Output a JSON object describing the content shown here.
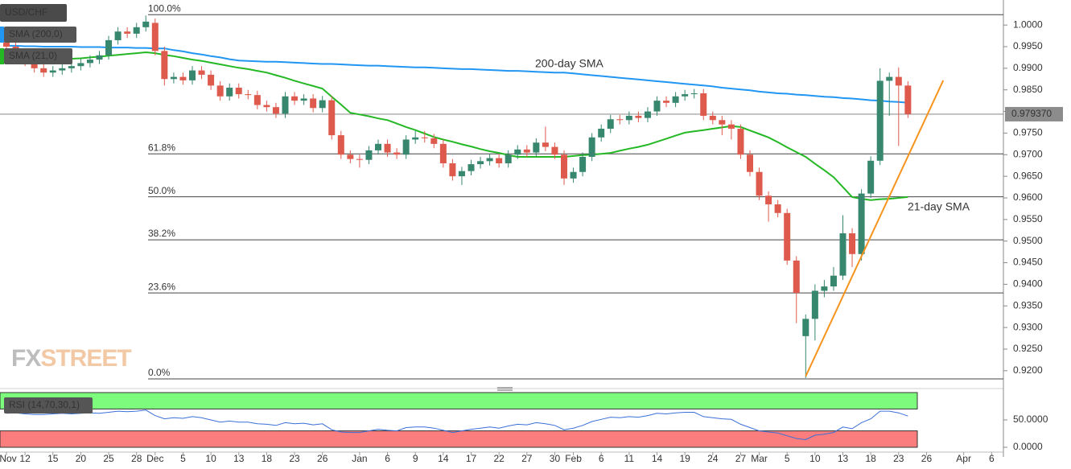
{
  "chart_data": {
    "type": "candlestick",
    "title": "USD/CHF",
    "categories": [
      "Nov",
      null,
      "12",
      null,
      null,
      "15",
      null,
      null,
      "20",
      null,
      null,
      "25",
      null,
      null,
      "28",
      null,
      "Dec",
      null,
      null,
      "5",
      null,
      null,
      "10",
      null,
      null,
      "13",
      null,
      null,
      "18",
      null,
      null,
      "23",
      null,
      null,
      "26",
      null,
      null,
      null,
      "Jan",
      null,
      null,
      "6",
      null,
      null,
      "9",
      null,
      null,
      "14",
      null,
      null,
      "17",
      null,
      null,
      "22",
      null,
      null,
      "27",
      null,
      null,
      "30",
      null,
      "Feb",
      null,
      null,
      "6",
      null,
      null,
      "11",
      null,
      null,
      "14",
      null,
      null,
      "19",
      null,
      null,
      "24",
      null,
      null,
      "27",
      null,
      "Mar",
      null,
      null,
      "5",
      null,
      null,
      "10",
      null,
      null,
      "13",
      null,
      null,
      "18",
      null,
      null,
      "23",
      null,
      null,
      "26",
      null,
      null,
      null,
      "Apr",
      null,
      null,
      "6"
    ],
    "open": [
      0.996,
      0.995,
      0.9935,
      0.9915,
      0.99,
      0.989,
      0.9895,
      0.99,
      0.9905,
      0.9912,
      0.992,
      0.993,
      0.9965,
      0.9985,
      0.998,
      0.9995,
      1.0005,
      0.994,
      0.9875,
      0.988,
      0.9872,
      0.9895,
      0.9885,
      0.986,
      0.9835,
      0.9855,
      0.984,
      0.9838,
      0.9815,
      0.981,
      0.9795,
      0.9835,
      0.9825,
      0.983,
      0.9808,
      0.9826,
      0.9745,
      0.97,
      0.969,
      0.9688,
      0.971,
      0.9725,
      0.9705,
      0.97,
      0.9735,
      0.974,
      0.9738,
      0.9725,
      0.968,
      0.965,
      0.9662,
      0.9678,
      0.9685,
      0.9692,
      0.968,
      0.97,
      0.9712,
      0.9705,
      0.9728,
      0.9718,
      0.97,
      0.9645,
      0.966,
      0.9695,
      0.974,
      0.976,
      0.9782,
      0.978,
      0.979,
      0.9785,
      0.98,
      0.9825,
      0.982,
      0.9835,
      0.984,
      0.9842,
      0.979,
      0.978,
      0.977,
      0.976,
      0.97,
      0.966,
      0.9605,
      0.9585,
      0.9565,
      0.9455,
      0.928,
      0.932,
      0.9385,
      0.9395,
      0.942,
      0.9518,
      0.947,
      0.961,
      0.9686,
      0.9871,
      0.988,
      0.986,
      null,
      null,
      null,
      null,
      null,
      null,
      null,
      null,
      null
    ],
    "high": [
      0.997,
      0.996,
      0.9945,
      0.9925,
      0.991,
      0.9905,
      0.991,
      0.9915,
      0.9922,
      0.993,
      0.994,
      0.9975,
      0.9995,
      0.9995,
      1.0005,
      1.0022,
      1.0015,
      0.995,
      0.989,
      0.989,
      0.9905,
      0.9905,
      0.9895,
      0.987,
      0.9865,
      0.9865,
      0.985,
      0.9848,
      0.9825,
      0.982,
      0.9845,
      0.9845,
      0.984,
      0.984,
      0.9836,
      0.9836,
      0.9755,
      0.971,
      0.97,
      0.972,
      0.9735,
      0.9735,
      0.9715,
      0.9745,
      0.9755,
      0.9755,
      0.9748,
      0.9735,
      0.969,
      0.9672,
      0.9688,
      0.9695,
      0.9702,
      0.9702,
      0.971,
      0.9722,
      0.9722,
      0.9738,
      0.9765,
      0.9728,
      0.971,
      0.967,
      0.9705,
      0.975,
      0.977,
      0.9792,
      0.9792,
      0.98,
      0.98,
      0.981,
      0.9835,
      0.9835,
      0.9845,
      0.985,
      0.9852,
      0.9852,
      0.98,
      0.979,
      0.978,
      0.977,
      0.971,
      0.967,
      0.9615,
      0.9595,
      0.9575,
      0.9465,
      0.933,
      0.94,
      0.941,
      0.944,
      0.956,
      0.953,
      0.962,
      0.9696,
      0.99,
      0.989,
      0.9902,
      0.987,
      null,
      null,
      null,
      null,
      null,
      null,
      null,
      null,
      null
    ],
    "low": [
      0.994,
      0.9925,
      0.9905,
      0.989,
      0.988,
      0.988,
      0.9885,
      0.989,
      0.9895,
      0.9902,
      0.991,
      0.992,
      0.9955,
      0.997,
      0.997,
      0.9985,
      0.993,
      0.986,
      0.9865,
      0.9862,
      0.9862,
      0.9875,
      0.985,
      0.9825,
      0.9825,
      0.983,
      0.9828,
      0.9805,
      0.98,
      0.9785,
      0.9785,
      0.9815,
      0.9815,
      0.9798,
      0.9798,
      0.9735,
      0.969,
      0.968,
      0.967,
      0.9678,
      0.97,
      0.9695,
      0.969,
      0.969,
      0.9725,
      0.9728,
      0.9715,
      0.967,
      0.964,
      0.963,
      0.9652,
      0.9668,
      0.9675,
      0.967,
      0.967,
      0.969,
      0.9695,
      0.9695,
      0.9708,
      0.969,
      0.963,
      0.9635,
      0.965,
      0.9685,
      0.973,
      0.975,
      0.977,
      0.977,
      0.9775,
      0.9775,
      0.979,
      0.981,
      0.981,
      0.9825,
      0.983,
      0.978,
      0.977,
      0.9745,
      0.9735,
      0.969,
      0.965,
      0.9595,
      0.9545,
      0.9555,
      0.9445,
      0.931,
      0.9183,
      0.927,
      0.937,
      0.9385,
      0.941,
      0.944,
      0.9455,
      0.96,
      0.9676,
      0.979,
      0.972,
      0.9785,
      null,
      null,
      null,
      null,
      null,
      null,
      null,
      null,
      null
    ],
    "close": [
      0.995,
      0.9935,
      0.9915,
      0.99,
      0.989,
      0.9895,
      0.99,
      0.9905,
      0.9912,
      0.992,
      0.993,
      0.9965,
      0.9985,
      0.998,
      0.9995,
      1.0008,
      0.994,
      0.9875,
      0.988,
      0.9872,
      0.9895,
      0.9885,
      0.986,
      0.9835,
      0.9855,
      0.984,
      0.9838,
      0.9815,
      0.981,
      0.9795,
      0.9835,
      0.9825,
      0.983,
      0.9808,
      0.9826,
      0.9745,
      0.97,
      0.969,
      0.9688,
      0.971,
      0.9725,
      0.9705,
      0.97,
      0.9735,
      0.974,
      0.9738,
      0.9725,
      0.968,
      0.965,
      0.9662,
      0.9678,
      0.9685,
      0.9692,
      0.968,
      0.97,
      0.9712,
      0.9705,
      0.9728,
      0.9718,
      0.97,
      0.9645,
      0.966,
      0.9695,
      0.974,
      0.976,
      0.9782,
      0.978,
      0.979,
      0.9785,
      0.98,
      0.9825,
      0.982,
      0.9835,
      0.984,
      0.9842,
      0.979,
      0.978,
      0.977,
      0.976,
      0.97,
      0.966,
      0.9605,
      0.9585,
      0.9565,
      0.9455,
      0.938,
      0.932,
      0.9385,
      0.9395,
      0.942,
      0.9518,
      0.947,
      0.961,
      0.9686,
      0.9871,
      0.988,
      0.986,
      0.9794,
      null,
      null,
      null,
      null,
      null,
      null,
      null,
      null,
      null
    ],
    "up_color": "#37876f",
    "down_color": "#de5a4c",
    "ylim": [
      0.9168,
      1.0058
    ],
    "yticks": [
      {
        "value": 0.92,
        "label": "0.9200"
      },
      {
        "value": 0.925,
        "label": "0.9250"
      },
      {
        "value": 0.93,
        "label": "0.9300"
      },
      {
        "value": 0.935,
        "label": "0.9350"
      },
      {
        "value": 0.94,
        "label": "0.9400"
      },
      {
        "value": 0.945,
        "label": "0.9450"
      },
      {
        "value": 0.95,
        "label": "0.9500"
      },
      {
        "value": 0.955,
        "label": "0.9550"
      },
      {
        "value": 0.96,
        "label": "0.9600"
      },
      {
        "value": 0.965,
        "label": "0.9650"
      },
      {
        "value": 0.97,
        "label": "0.9700"
      },
      {
        "value": 0.975,
        "label": "0.9750"
      },
      {
        "value": 0.98,
        "label": "0.9800"
      },
      {
        "value": 0.985,
        "label": "0.9850"
      },
      {
        "value": 0.99,
        "label": "0.9900"
      },
      {
        "value": 0.995,
        "label": "0.9950"
      },
      {
        "value": 1.0,
        "label": "1.0000"
      }
    ],
    "series": [
      {
        "name": "SMA (200,0)",
        "annotation": "200-day SMA",
        "color": "#2196f3",
        "values": [
          0.9952,
          0.9952,
          0.9951,
          0.9951,
          0.995,
          0.995,
          0.995,
          0.995,
          0.9949,
          0.9949,
          0.9949,
          0.9948,
          0.9948,
          0.9948,
          0.9947,
          0.9947,
          0.9946,
          0.9946,
          0.9942,
          0.9939,
          0.9935,
          0.9932,
          0.9928,
          0.9925,
          0.9921,
          0.9918,
          0.9917,
          0.9916,
          0.9915,
          0.9915,
          0.9914,
          0.9913,
          0.9912,
          0.9911,
          0.991,
          0.991,
          0.9909,
          0.9908,
          0.9907,
          0.9906,
          0.9906,
          0.9905,
          0.9904,
          0.9903,
          0.9902,
          0.9902,
          0.9901,
          0.99,
          0.9899,
          0.9898,
          0.9898,
          0.9897,
          0.9896,
          0.9895,
          0.9894,
          0.9894,
          0.9893,
          0.9892,
          0.9891,
          0.989,
          0.989,
          0.9888,
          0.9886,
          0.9884,
          0.9882,
          0.988,
          0.9878,
          0.9876,
          0.9874,
          0.9872,
          0.987,
          0.9868,
          0.9866,
          0.9864,
          0.9862,
          0.986,
          0.9858,
          0.9855,
          0.9853,
          0.9851,
          0.9849,
          0.9846,
          0.9844,
          0.9842,
          0.9841,
          0.9839,
          0.9838,
          0.9836,
          0.9834,
          0.9833,
          0.9831,
          0.983,
          0.9828,
          0.9826,
          0.9825,
          0.9823,
          0.9822,
          0.982,
          null,
          null,
          null,
          null,
          null,
          null,
          null,
          null,
          null
        ]
      },
      {
        "name": "SMA (21,0)",
        "annotation": "21-day SMA",
        "color": "#25b825",
        "values": [
          0.9918,
          0.9919,
          0.9919,
          0.992,
          0.992,
          0.9921,
          0.9922,
          0.9922,
          0.9923,
          0.9925,
          0.9927,
          0.9929,
          0.9931,
          0.9933,
          0.9935,
          0.9937,
          0.9935,
          0.9931,
          0.9928,
          0.9924,
          0.992,
          0.9917,
          0.9913,
          0.9909,
          0.9905,
          0.9901,
          0.9898,
          0.9894,
          0.989,
          0.9884,
          0.9878,
          0.9871,
          0.9865,
          0.9859,
          0.9853,
          0.9834,
          0.9816,
          0.9797,
          0.9793,
          0.9789,
          0.9784,
          0.978,
          0.9772,
          0.9764,
          0.9757,
          0.9749,
          0.9741,
          0.9735,
          0.973,
          0.9724,
          0.9719,
          0.9713,
          0.9708,
          0.9704,
          0.9699,
          0.9695,
          0.9695,
          0.9695,
          0.9695,
          0.9695,
          0.9695,
          0.9697,
          0.9699,
          0.97,
          0.9702,
          0.9704,
          0.9709,
          0.9714,
          0.9718,
          0.9723,
          0.973,
          0.9737,
          0.9744,
          0.9751,
          0.9754,
          0.9757,
          0.976,
          0.9763,
          0.9766,
          0.9764,
          0.9756,
          0.9748,
          0.974,
          0.9729,
          0.9717,
          0.9706,
          0.9695,
          0.9679,
          0.9664,
          0.9648,
          0.9625,
          0.9602,
          0.9598,
          0.9595,
          0.9597,
          0.9598,
          0.96,
          0.9602,
          null,
          null,
          null,
          null,
          null,
          null,
          null,
          null,
          null
        ]
      }
    ],
    "fib": {
      "high": 1.0024,
      "low": 0.9181,
      "levels": [
        {
          "value": 100,
          "label": "100.0%"
        },
        {
          "value": 61.8,
          "label": "61.8%"
        },
        {
          "value": 50,
          "label": "50.0%"
        },
        {
          "value": 38.2,
          "label": "38.2%"
        },
        {
          "value": 23.6,
          "label": "23.6%"
        },
        {
          "value": 0,
          "label": "0.0%"
        }
      ]
    },
    "trendline": {
      "x": [
        86,
        100.8
      ],
      "y": [
        0.9187,
        0.9872
      ],
      "color": "#f7941d"
    },
    "last_price": {
      "value": 0.97937,
      "label": "0.979370"
    },
    "watermark": [
      "FX",
      "STREET"
    ],
    "rsi": {
      "name": "RSI (14,70,30,1)",
      "color": "#3a6fd8",
      "ylim": [
        0,
        100
      ],
      "overbought": 70,
      "oversold": 30,
      "yticks": [
        {
          "value": 50,
          "label": "50.0000"
        },
        {
          "value": 0,
          "label": "0.0000"
        }
      ],
      "values": [
        62,
        63,
        61,
        60,
        60,
        61,
        62,
        61,
        62,
        63,
        62,
        64,
        66,
        65,
        66,
        68,
        58,
        52,
        54,
        53,
        56,
        54,
        50,
        46,
        48,
        46,
        46,
        43,
        42,
        40,
        45,
        43,
        44,
        41,
        43,
        32,
        28,
        27,
        27,
        30,
        33,
        31,
        30,
        36,
        37,
        37,
        35,
        31,
        27,
        30,
        33,
        35,
        37,
        35,
        39,
        42,
        41,
        45,
        43,
        40,
        32,
        35,
        40,
        47,
        51,
        55,
        54,
        56,
        55,
        58,
        62,
        61,
        63,
        64,
        64,
        56,
        54,
        52,
        51,
        42,
        36,
        30,
        28,
        26,
        21,
        16,
        14,
        22,
        24,
        27,
        37,
        34,
        45,
        52,
        66,
        66,
        63,
        57,
        null,
        null,
        null,
        null,
        null,
        null,
        null,
        null,
        null
      ]
    }
  }
}
